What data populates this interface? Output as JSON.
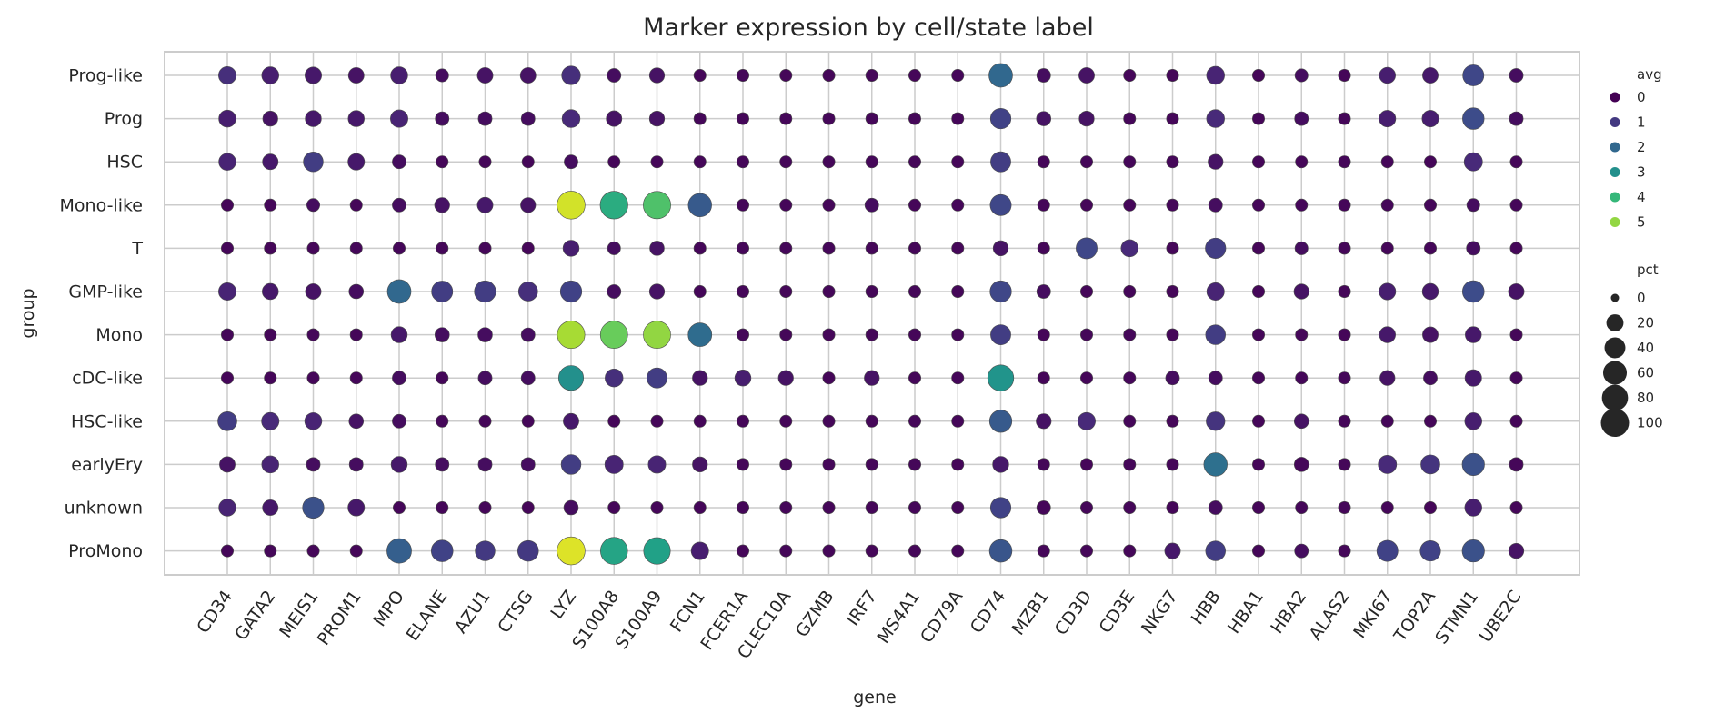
{
  "chart_data": {
    "type": "scatter",
    "subtype": "dot-plot",
    "title": "Marker expression by cell/state label",
    "xlabel": "gene",
    "ylabel": "group",
    "genes": [
      "CD34",
      "GATA2",
      "MEIS1",
      "PROM1",
      "MPO",
      "ELANE",
      "AZU1",
      "CTSG",
      "LYZ",
      "S100A8",
      "S100A9",
      "FCN1",
      "FCER1A",
      "CLEC10A",
      "GZMB",
      "IRF7",
      "MS4A1",
      "CD79A",
      "CD74",
      "MZB1",
      "CD3D",
      "CD3E",
      "NKG7",
      "HBB",
      "HBA1",
      "HBA2",
      "ALAS2",
      "MKI67",
      "TOP2A",
      "STMN1",
      "UBE2C"
    ],
    "groups": [
      "Prog-like",
      "Prog",
      "HSC",
      "Mono-like",
      "T",
      "GMP-like",
      "Mono",
      "cDC-like",
      "HSC-like",
      "earlyEry",
      "unknown",
      "ProMono"
    ],
    "color_scale": {
      "name": "viridis",
      "min": 0,
      "max": 6,
      "colors": [
        "#440154",
        "#482878",
        "#3e4989",
        "#31688e",
        "#26828e",
        "#1f9e89",
        "#35b779",
        "#6ece58",
        "#b5de2b",
        "#fde725"
      ]
    },
    "legend_avg": {
      "title": "avg",
      "ticks": [
        0,
        1,
        2,
        3,
        4,
        5
      ]
    },
    "legend_pct": {
      "title": "pct",
      "ticks": [
        0,
        20,
        40,
        60,
        80,
        100
      ]
    },
    "grid": true,
    "legend_position": "right",
    "series": [
      {
        "group": "Prog-like",
        "avg": [
          0.8,
          0.5,
          0.4,
          0.3,
          0.5,
          0.2,
          0.3,
          0.3,
          0.8,
          0.2,
          0.3,
          0.1,
          0.1,
          0.1,
          0.1,
          0.1,
          0.1,
          0.1,
          2.0,
          0.2,
          0.3,
          0.1,
          0.1,
          0.6,
          0.1,
          0.2,
          0.1,
          0.5,
          0.4,
          1.3,
          0.2
        ],
        "pct": [
          22,
          20,
          18,
          14,
          20,
          6,
          14,
          14,
          28,
          8,
          12,
          4,
          4,
          4,
          4,
          4,
          4,
          4,
          60,
          8,
          14,
          4,
          4,
          24,
          4,
          6,
          4,
          16,
          14,
          42,
          8
        ]
      },
      {
        "group": "Prog",
        "avg": [
          0.5,
          0.3,
          0.4,
          0.4,
          0.6,
          0.2,
          0.2,
          0.2,
          0.7,
          0.3,
          0.3,
          0.1,
          0.1,
          0.1,
          0.1,
          0.1,
          0.1,
          0.1,
          1.2,
          0.3,
          0.3,
          0.1,
          0.1,
          0.7,
          0.1,
          0.2,
          0.1,
          0.5,
          0.5,
          1.4,
          0.2
        ],
        "pct": [
          20,
          12,
          16,
          16,
          22,
          8,
          8,
          8,
          24,
          14,
          12,
          4,
          4,
          4,
          4,
          4,
          4,
          4,
          38,
          10,
          12,
          4,
          4,
          24,
          4,
          8,
          4,
          18,
          18,
          45,
          8
        ]
      },
      {
        "group": "HSC",
        "avg": [
          0.6,
          0.4,
          1.1,
          0.4,
          0.2,
          0.1,
          0.1,
          0.1,
          0.2,
          0.1,
          0.1,
          0.1,
          0.1,
          0.1,
          0.1,
          0.1,
          0.1,
          0.1,
          1.1,
          0.1,
          0.1,
          0.1,
          0.1,
          0.3,
          0.1,
          0.1,
          0.1,
          0.1,
          0.1,
          0.7,
          0.1
        ],
        "pct": [
          20,
          14,
          34,
          18,
          8,
          4,
          4,
          4,
          8,
          4,
          4,
          4,
          4,
          4,
          4,
          4,
          4,
          4,
          36,
          4,
          4,
          4,
          4,
          12,
          4,
          4,
          4,
          4,
          4,
          26,
          4
        ]
      },
      {
        "group": "Mono-like",
        "avg": [
          0.1,
          0.1,
          0.2,
          0.1,
          0.2,
          0.3,
          0.4,
          0.3,
          5.6,
          3.7,
          4.3,
          1.7,
          0.1,
          0.1,
          0.1,
          0.2,
          0.1,
          0.1,
          1.3,
          0.1,
          0.1,
          0.1,
          0.1,
          0.2,
          0.1,
          0.1,
          0.1,
          0.1,
          0.1,
          0.2,
          0.1
        ],
        "pct": [
          4,
          4,
          6,
          4,
          8,
          12,
          14,
          12,
          98,
          96,
          94,
          58,
          4,
          4,
          4,
          8,
          4,
          4,
          42,
          4,
          4,
          4,
          4,
          8,
          4,
          4,
          4,
          4,
          4,
          6,
          4
        ]
      },
      {
        "group": "T",
        "avg": [
          0.1,
          0.1,
          0.1,
          0.1,
          0.1,
          0.1,
          0.1,
          0.1,
          0.5,
          0.2,
          0.3,
          0.1,
          0.1,
          0.1,
          0.1,
          0.1,
          0.1,
          0.1,
          0.3,
          0.1,
          1.3,
          0.7,
          0.1,
          1.1,
          0.1,
          0.2,
          0.1,
          0.1,
          0.1,
          0.2,
          0.1
        ],
        "pct": [
          4,
          4,
          4,
          4,
          4,
          4,
          4,
          4,
          16,
          6,
          10,
          4,
          4,
          4,
          4,
          4,
          4,
          4,
          12,
          4,
          42,
          20,
          4,
          38,
          4,
          6,
          4,
          4,
          4,
          8,
          4
        ]
      },
      {
        "group": "GMP-like",
        "avg": [
          0.6,
          0.4,
          0.3,
          0.2,
          2.0,
          1.1,
          1.1,
          0.8,
          1.2,
          0.2,
          0.3,
          0.1,
          0.1,
          0.1,
          0.1,
          0.1,
          0.1,
          0.1,
          1.3,
          0.2,
          0.1,
          0.1,
          0.1,
          0.6,
          0.1,
          0.3,
          0.1,
          0.5,
          0.4,
          1.4,
          0.3
        ],
        "pct": [
          22,
          16,
          14,
          10,
          60,
          42,
          44,
          30,
          44,
          8,
          12,
          4,
          4,
          4,
          4,
          4,
          4,
          4,
          44,
          8,
          4,
          4,
          4,
          22,
          4,
          12,
          4,
          18,
          16,
          46,
          14
        ]
      },
      {
        "group": "Mono",
        "avg": [
          0.1,
          0.1,
          0.1,
          0.1,
          0.4,
          0.2,
          0.2,
          0.2,
          5.2,
          4.6,
          5.0,
          2.1,
          0.1,
          0.1,
          0.1,
          0.1,
          0.1,
          0.1,
          1.1,
          0.1,
          0.1,
          0.1,
          0.1,
          1.1,
          0.1,
          0.1,
          0.1,
          0.4,
          0.3,
          0.4,
          0.1
        ],
        "pct": [
          4,
          4,
          4,
          4,
          16,
          10,
          10,
          8,
          94,
          92,
          92,
          60,
          4,
          4,
          4,
          4,
          4,
          4,
          36,
          4,
          4,
          4,
          4,
          34,
          4,
          4,
          4,
          16,
          14,
          16,
          4
        ]
      },
      {
        "group": "cDC-like",
        "avg": [
          0.1,
          0.1,
          0.1,
          0.1,
          0.2,
          0.1,
          0.2,
          0.2,
          3.0,
          0.8,
          1.1,
          0.3,
          0.5,
          0.3,
          0.1,
          0.3,
          0.1,
          0.1,
          3.1,
          0.1,
          0.1,
          0.1,
          0.2,
          0.2,
          0.1,
          0.1,
          0.1,
          0.3,
          0.2,
          0.4,
          0.1
        ],
        "pct": [
          4,
          4,
          4,
          4,
          8,
          4,
          8,
          8,
          70,
          24,
          36,
          12,
          16,
          12,
          4,
          12,
          4,
          4,
          80,
          4,
          4,
          4,
          8,
          8,
          4,
          4,
          4,
          12,
          8,
          18,
          4
        ]
      },
      {
        "group": "HSC-like",
        "avg": [
          1.1,
          0.7,
          0.6,
          0.3,
          0.2,
          0.1,
          0.1,
          0.1,
          0.4,
          0.1,
          0.1,
          0.1,
          0.1,
          0.1,
          0.1,
          0.1,
          0.1,
          0.1,
          1.7,
          0.3,
          0.7,
          0.1,
          0.1,
          0.9,
          0.1,
          0.3,
          0.1,
          0.1,
          0.1,
          0.5,
          0.1
        ],
        "pct": [
          30,
          22,
          20,
          10,
          8,
          4,
          4,
          4,
          14,
          4,
          4,
          4,
          4,
          4,
          4,
          4,
          4,
          4,
          50,
          12,
          22,
          4,
          4,
          28,
          4,
          10,
          4,
          4,
          4,
          20,
          4
        ]
      },
      {
        "group": "earlyEry",
        "avg": [
          0.3,
          0.6,
          0.2,
          0.2,
          0.4,
          0.2,
          0.2,
          0.2,
          1.1,
          0.6,
          0.6,
          0.3,
          0.1,
          0.1,
          0.1,
          0.1,
          0.1,
          0.1,
          0.4,
          0.1,
          0.1,
          0.1,
          0.1,
          2.2,
          0.1,
          0.1,
          0.1,
          0.7,
          0.9,
          1.5,
          0.1
        ],
        "pct": [
          14,
          20,
          8,
          8,
          16,
          8,
          8,
          8,
          34,
          26,
          22,
          12,
          4,
          4,
          4,
          4,
          4,
          4,
          16,
          4,
          4,
          4,
          4,
          58,
          4,
          10,
          4,
          26,
          30,
          50,
          8
        ]
      },
      {
        "group": "unknown",
        "avg": [
          0.6,
          0.4,
          1.5,
          0.4,
          0.1,
          0.1,
          0.1,
          0.1,
          0.2,
          0.1,
          0.1,
          0.1,
          0.1,
          0.1,
          0.1,
          0.1,
          0.1,
          0.1,
          1.2,
          0.1,
          0.1,
          0.1,
          0.1,
          0.2,
          0.1,
          0.1,
          0.1,
          0.1,
          0.1,
          0.5,
          0.1
        ],
        "pct": [
          20,
          14,
          44,
          18,
          4,
          4,
          4,
          4,
          10,
          4,
          4,
          4,
          4,
          4,
          4,
          4,
          4,
          4,
          38,
          8,
          4,
          4,
          4,
          8,
          4,
          4,
          4,
          4,
          4,
          20,
          4
        ]
      },
      {
        "group": "ProMono",
        "avg": [
          0.1,
          0.1,
          0.1,
          0.1,
          1.8,
          1.2,
          1.0,
          1.0,
          5.7,
          3.5,
          3.4,
          0.5,
          0.1,
          0.1,
          0.1,
          0.1,
          0.1,
          0.1,
          1.6,
          0.1,
          0.1,
          0.1,
          0.4,
          1.1,
          0.1,
          0.2,
          0.1,
          1.2,
          1.2,
          1.5,
          0.3
        ],
        "pct": [
          4,
          4,
          4,
          4,
          68,
          46,
          34,
          40,
          98,
          90,
          86,
          22,
          4,
          4,
          4,
          4,
          4,
          4,
          52,
          4,
          4,
          4,
          14,
          34,
          4,
          8,
          4,
          42,
          38,
          50,
          12
        ]
      }
    ]
  }
}
